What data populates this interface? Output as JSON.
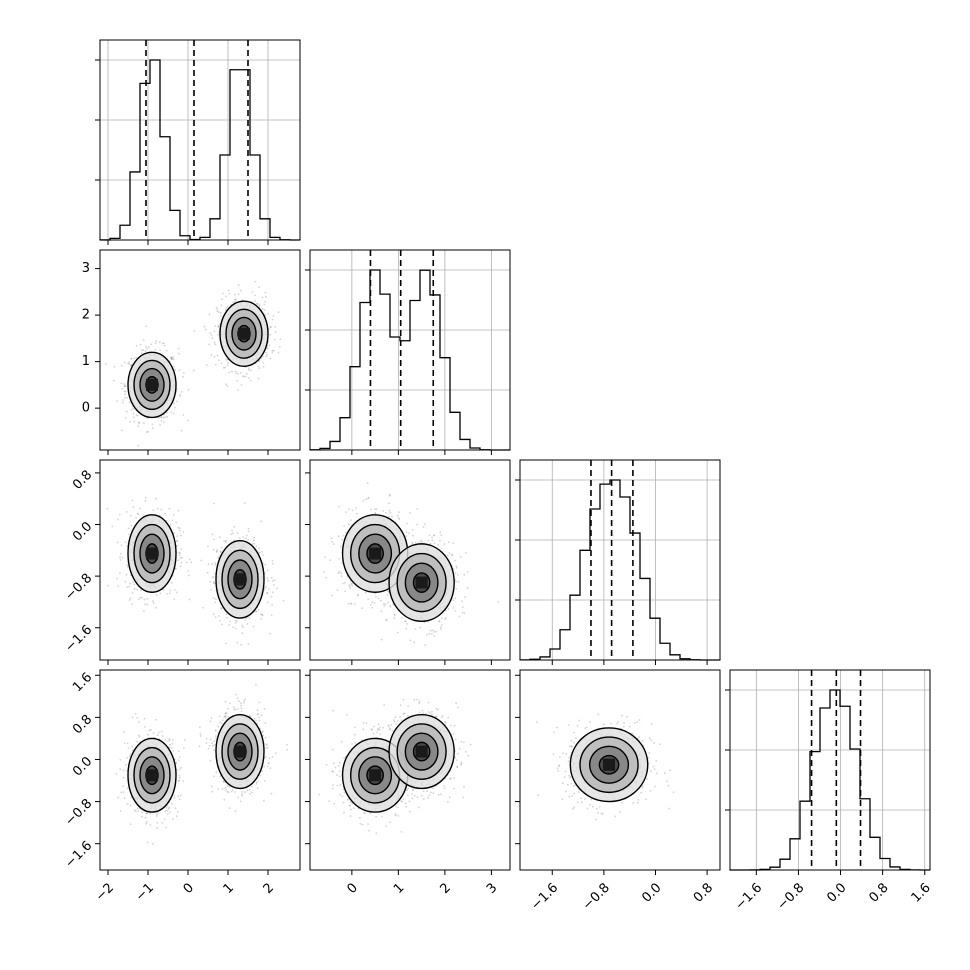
{
  "chart_data": {
    "type": "corner",
    "title": "",
    "parameters": [
      {
        "index": 0,
        "range": [
          -2.2,
          2.8
        ],
        "ticks": [
          -2,
          -1,
          0,
          1,
          2
        ],
        "tick_labels": [
          "−2",
          "−1",
          "0",
          "1",
          "2"
        ],
        "components": [
          {
            "mu": -0.9,
            "sd": 0.3,
            "w": 0.5
          },
          {
            "mu": 1.3,
            "sd": 0.3,
            "w": 0.5
          }
        ],
        "quantiles": [
          -1.05,
          0.15,
          1.5
        ]
      },
      {
        "index": 1,
        "range": [
          -0.9,
          3.4
        ],
        "ticks": [
          0,
          1,
          2,
          3
        ],
        "tick_labels": [
          "0",
          "1",
          "2",
          "3"
        ],
        "components": [
          {
            "mu": 0.5,
            "sd": 0.35,
            "w": 0.5
          },
          {
            "mu": 1.6,
            "sd": 0.35,
            "w": 0.5
          }
        ],
        "quantiles": [
          0.4,
          1.05,
          1.75
        ]
      },
      {
        "index": 2,
        "range": [
          -2.1,
          1.0
        ],
        "ticks": [
          -1.6,
          -0.8,
          0.0,
          0.8
        ],
        "tick_labels": [
          "−1.6",
          "−0.8",
          "0.0",
          "0.8"
        ],
        "components": [
          {
            "mu": -0.45,
            "sd": 0.3,
            "w": 0.5
          },
          {
            "mu": -0.9,
            "sd": 0.3,
            "w": 0.5
          }
        ],
        "quantiles": [
          -1.0,
          -0.68,
          -0.35
        ]
      },
      {
        "index": 3,
        "range": [
          -2.1,
          1.7
        ],
        "ticks": [
          -1.6,
          -0.8,
          0.0,
          0.8,
          1.6
        ],
        "tick_labels": [
          "−1.6",
          "−0.8",
          "0.0",
          "0.8",
          "1.6"
        ],
        "components": [
          {
            "mu": -0.3,
            "sd": 0.35,
            "w": 0.5
          },
          {
            "mu": 0.1,
            "sd": 0.35,
            "w": 0.5
          }
        ],
        "quantiles": [
          -0.55,
          -0.08,
          0.38
        ]
      }
    ],
    "pair_modes": {
      "1_0": [
        {
          "x": -0.9,
          "y": 0.5
        },
        {
          "x": 1.4,
          "y": 1.6
        }
      ],
      "2_0": [
        {
          "x": -0.9,
          "y": -0.45
        },
        {
          "x": 1.3,
          "y": -0.85
        }
      ],
      "2_1": [
        {
          "x": 0.5,
          "y": -0.45
        },
        {
          "x": 1.5,
          "y": -0.9
        }
      ],
      "3_0": [
        {
          "x": -0.9,
          "y": -0.3
        },
        {
          "x": 1.3,
          "y": 0.15
        }
      ],
      "3_1": [
        {
          "x": 0.5,
          "y": -0.3
        },
        {
          "x": 1.5,
          "y": 0.15
        }
      ],
      "3_2": [
        {
          "x": -0.72,
          "y": -0.1
        }
      ]
    },
    "grid": true,
    "hist_bins": 20
  },
  "colors": {
    "line": "#000000",
    "grid": "#b0b0b0",
    "density_dark": "#1a1a1a"
  }
}
